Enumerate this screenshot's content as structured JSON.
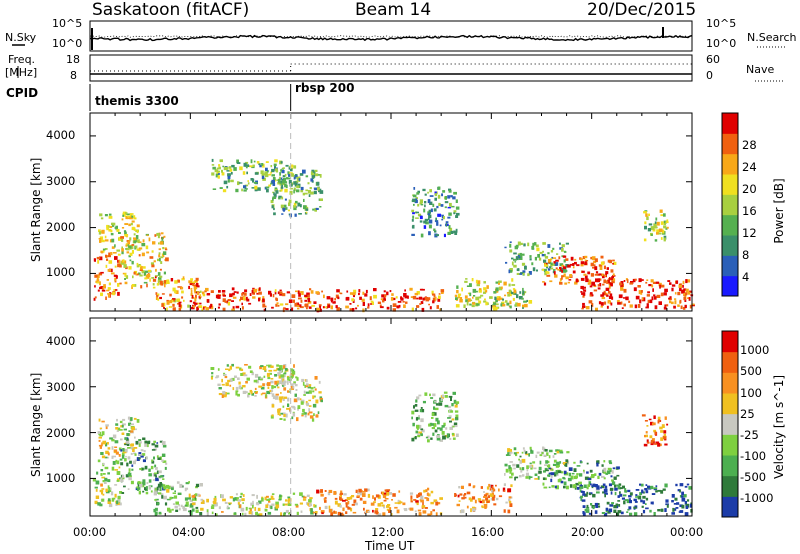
{
  "header": {
    "station": "Saskatoon (fitACF)",
    "beam": "Beam 14",
    "date": "20/Dec/2015"
  },
  "top_panels": {
    "nsky_label": "N.Sky",
    "nsearch_label": "N.Search",
    "nsky_ticks": [
      "10^5",
      "10^0"
    ],
    "nsearch_ticks": [
      "10^5",
      "10^0"
    ],
    "freq_label": "Freq.",
    "freq_unit": "[MHz]",
    "freq_ticks": [
      "18",
      "8"
    ],
    "nave_label": "Nave",
    "nave_ticks": [
      "60",
      "0"
    ],
    "cpid_label": "CPID",
    "cpid_segments": [
      {
        "start_hour": 0,
        "label": "themis 3300"
      },
      {
        "start_hour": 8,
        "label": "rbsp 200"
      }
    ]
  },
  "axes": {
    "xlabel": "Time UT",
    "x_ticks": [
      "00:00",
      "04:00",
      "08:00",
      "12:00",
      "16:00",
      "20:00",
      "00:00"
    ],
    "ylabel": "Slant Range [km]",
    "y_ticks": [
      "4000",
      "3000",
      "2000",
      "1000"
    ]
  },
  "chart_data": [
    {
      "type": "heatmap",
      "title": "",
      "xlabel": "Time UT",
      "ylabel": "Slant Range [km]",
      "xlim": [
        0,
        24
      ],
      "ylim": [
        180,
        4500
      ],
      "colorbar": {
        "label": "Power [dB]",
        "ticks": [
          "28",
          "24",
          "20",
          "16",
          "12",
          "8",
          "4"
        ],
        "range": [
          0,
          32
        ],
        "colors": [
          "#1a1aff",
          "#2a5fb8",
          "#3a8f6a",
          "#55b050",
          "#a8d040",
          "#f0e020",
          "#f8a818",
          "#f06010",
          "#e00000"
        ]
      },
      "regions": [
        {
          "t0": 0.1,
          "t1": 1.2,
          "r0": 450,
          "r1": 1500,
          "level": 0.8
        },
        {
          "t0": 0.3,
          "t1": 1.9,
          "r0": 1500,
          "r1": 2350,
          "level": 0.55
        },
        {
          "t0": 1.2,
          "t1": 3.0,
          "r0": 700,
          "r1": 1900,
          "level": 0.6
        },
        {
          "t0": 2.5,
          "t1": 4.4,
          "r0": 250,
          "r1": 950,
          "level": 0.75
        },
        {
          "t0": 4.0,
          "t1": 14.0,
          "r0": 230,
          "r1": 700,
          "level": 0.85
        },
        {
          "t0": 4.8,
          "t1": 8.2,
          "r0": 2800,
          "r1": 3500,
          "level": 0.4
        },
        {
          "t0": 7.2,
          "t1": 9.2,
          "r0": 2300,
          "r1": 3300,
          "level": 0.35
        },
        {
          "t0": 12.8,
          "t1": 14.6,
          "r0": 1850,
          "r1": 2900,
          "level": 0.3
        },
        {
          "t0": 14.5,
          "t1": 16.8,
          "r0": 300,
          "r1": 900,
          "level": 0.55
        },
        {
          "t0": 16.0,
          "t1": 17.5,
          "r0": 250,
          "r1": 700,
          "level": 0.5
        },
        {
          "t0": 16.5,
          "t1": 19.0,
          "r0": 1000,
          "r1": 1700,
          "level": 0.35
        },
        {
          "t0": 18.0,
          "t1": 21.0,
          "r0": 800,
          "r1": 1400,
          "level": 0.85
        },
        {
          "t0": 19.5,
          "t1": 24.0,
          "r0": 250,
          "r1": 900,
          "level": 0.9
        },
        {
          "t0": 22.0,
          "t1": 23.0,
          "r0": 1700,
          "r1": 2400,
          "level": 0.5
        }
      ]
    },
    {
      "type": "heatmap",
      "title": "",
      "xlabel": "Time UT",
      "ylabel": "Slant Range [km]",
      "xlim": [
        0,
        24
      ],
      "ylim": [
        180,
        4500
      ],
      "colorbar": {
        "label": "Velocity [m s^-1]",
        "ticks": [
          "1000",
          "500",
          "100",
          "25",
          "-25",
          "-100",
          "-500",
          "-1000"
        ],
        "colors": [
          "#1c3ca8",
          "#2f7a3a",
          "#4caf50",
          "#7ed040",
          "#c8c8c0",
          "#f0c020",
          "#f89020",
          "#f06010",
          "#e00000"
        ]
      },
      "regions": [
        {
          "t0": 0.1,
          "t1": 1.2,
          "r0": 450,
          "r1": 1500,
          "level": 0.45
        },
        {
          "t0": 0.3,
          "t1": 1.9,
          "r0": 1500,
          "r1": 2350,
          "level": 0.5
        },
        {
          "t0": 1.2,
          "t1": 3.0,
          "r0": 700,
          "r1": 1900,
          "level": 0.3
        },
        {
          "t0": 2.5,
          "t1": 4.4,
          "r0": 250,
          "r1": 950,
          "level": 0.35
        },
        {
          "t0": 4.0,
          "t1": 9.0,
          "r0": 230,
          "r1": 700,
          "level": 0.5
        },
        {
          "t0": 9.0,
          "t1": 14.0,
          "r0": 230,
          "r1": 800,
          "level": 0.7
        },
        {
          "t0": 4.8,
          "t1": 8.2,
          "r0": 2800,
          "r1": 3500,
          "level": 0.5
        },
        {
          "t0": 7.2,
          "t1": 9.2,
          "r0": 2300,
          "r1": 3300,
          "level": 0.5
        },
        {
          "t0": 12.8,
          "t1": 14.6,
          "r0": 1850,
          "r1": 2900,
          "level": 0.35
        },
        {
          "t0": 14.5,
          "t1": 16.8,
          "r0": 300,
          "r1": 900,
          "level": 0.7
        },
        {
          "t0": 16.5,
          "t1": 19.0,
          "r0": 1000,
          "r1": 1700,
          "level": 0.4
        },
        {
          "t0": 18.0,
          "t1": 21.0,
          "r0": 800,
          "r1": 1400,
          "level": 0.25
        },
        {
          "t0": 19.5,
          "t1": 24.0,
          "r0": 250,
          "r1": 900,
          "level": 0.1
        },
        {
          "t0": 22.0,
          "t1": 23.0,
          "r0": 1700,
          "r1": 2400,
          "level": 0.8
        }
      ]
    }
  ]
}
